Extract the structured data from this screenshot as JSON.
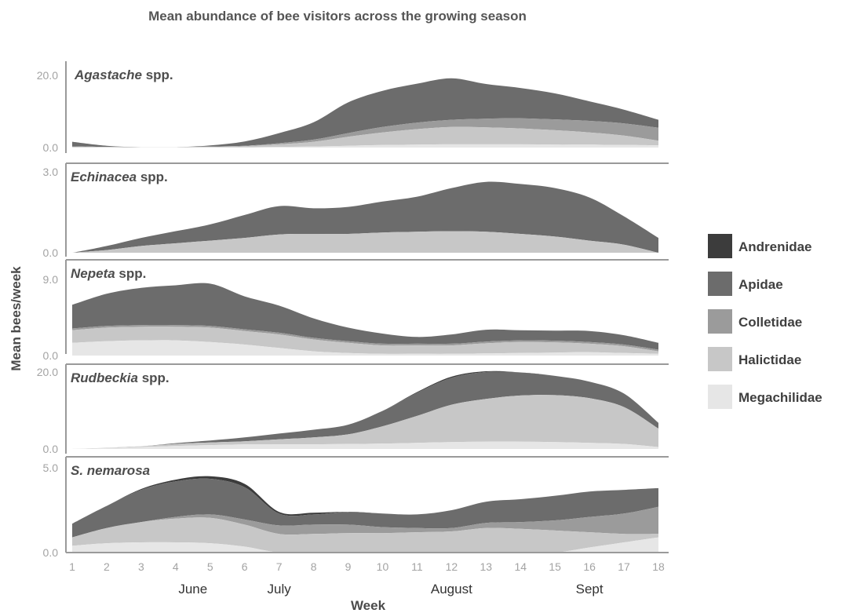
{
  "chart_data": {
    "type": "area",
    "title": "Mean abundance of bee visitors across the growing season",
    "xlabel": "Week",
    "ylabel": "Mean bees/week",
    "x": [
      1,
      2,
      3,
      4,
      5,
      6,
      7,
      8,
      9,
      10,
      11,
      12,
      13,
      14,
      15,
      16,
      17,
      18
    ],
    "x_ticks": [
      "1",
      "2",
      "3",
      "4",
      "5",
      "6",
      "7",
      "8",
      "9",
      "10",
      "11",
      "12",
      "13",
      "14",
      "15",
      "16",
      "17",
      "18"
    ],
    "months": [
      {
        "label": "June",
        "x": 4.5
      },
      {
        "label": "July",
        "x": 7.0
      },
      {
        "label": "August",
        "x": 12.0
      },
      {
        "label": "Sept",
        "x": 16.0
      }
    ],
    "legend": {
      "position": "right",
      "entries": [
        {
          "name": "Andrenidae",
          "color": "#3c3c3c"
        },
        {
          "name": "Apidae",
          "color": "#6c6c6c"
        },
        {
          "name": "Colletidae",
          "color": "#9b9b9b"
        },
        {
          "name": "Halictidae",
          "color": "#c7c7c7"
        },
        {
          "name": "Megachilidae",
          "color": "#e6e6e6"
        }
      ]
    },
    "stack_order": [
      "Megachilidae",
      "Halictidae",
      "Colletidae",
      "Apidae",
      "Andrenidae"
    ],
    "panels": [
      {
        "name_italic": "Agastache",
        "name_suffix": " spp.",
        "ylim": [
          0,
          20
        ],
        "y_ticks": [
          "0.0",
          "20.0"
        ],
        "series": {
          "Megachilidae": [
            0.1,
            0.1,
            0.1,
            0.1,
            0.1,
            0.1,
            0.2,
            0.3,
            0.5,
            0.7,
            0.8,
            0.9,
            0.9,
            0.9,
            0.8,
            0.8,
            0.7,
            0.6
          ],
          "Halictidae": [
            0.1,
            0.1,
            0,
            0,
            0.1,
            0.3,
            0.7,
            1.3,
            2.5,
            3.5,
            4.3,
            4.8,
            4.7,
            4.4,
            4.0,
            3.4,
            2.6,
            1.3
          ],
          "Colletidae": [
            0.1,
            0,
            0,
            0,
            0.1,
            0.1,
            0.3,
            0.6,
            1.0,
            1.5,
            1.8,
            2.0,
            2.4,
            2.8,
            3.0,
            3.2,
            3.4,
            3.6
          ],
          "Apidae": [
            1.3,
            0.3,
            0,
            0,
            0.3,
            1.2,
            2.8,
            4.8,
            8.5,
            10.0,
            10.8,
            11.5,
            9.6,
            8.4,
            7.2,
            5.4,
            3.8,
            2.2
          ],
          "Andrenidae": [
            0,
            0,
            0,
            0,
            0,
            0,
            0,
            0,
            0,
            0,
            0,
            0,
            0,
            0,
            0,
            0,
            0,
            0
          ]
        }
      },
      {
        "name_italic": "Echinacea",
        "name_suffix": " spp.",
        "ylim": [
          0,
          3
        ],
        "y_ticks": [
          "0.0",
          "3.0"
        ],
        "series": {
          "Megachilidae": [
            0,
            0,
            0,
            0,
            0,
            0,
            0,
            0,
            0,
            0,
            0,
            0,
            0,
            0,
            0,
            0,
            0,
            0
          ],
          "Halictidae": [
            0,
            0.1,
            0.25,
            0.35,
            0.45,
            0.55,
            0.68,
            0.7,
            0.7,
            0.75,
            0.78,
            0.8,
            0.78,
            0.7,
            0.6,
            0.45,
            0.3,
            0
          ],
          "Colletidae": [
            0,
            0,
            0,
            0,
            0,
            0,
            0,
            0,
            0,
            0,
            0,
            0,
            0,
            0,
            0,
            0,
            0,
            0
          ],
          "Apidae": [
            0,
            0.15,
            0.3,
            0.45,
            0.6,
            0.85,
            1.05,
            0.95,
            1.0,
            1.15,
            1.3,
            1.6,
            1.85,
            1.85,
            1.8,
            1.6,
            1.05,
            0.55
          ],
          "Andrenidae": [
            0,
            0,
            0,
            0,
            0,
            0,
            0,
            0,
            0,
            0,
            0,
            0,
            0,
            0,
            0,
            0,
            0,
            0
          ]
        }
      },
      {
        "name_italic": "Nepeta",
        "name_suffix": " spp.",
        "ylim": [
          0,
          9
        ],
        "y_ticks": [
          "0.0",
          "9.0"
        ],
        "series": {
          "Megachilidae": [
            1.5,
            1.7,
            1.8,
            1.8,
            1.6,
            1.3,
            0.9,
            0.5,
            0.3,
            0.2,
            0.2,
            0.2,
            0.25,
            0.3,
            0.35,
            0.4,
            0.3,
            0.2
          ],
          "Halictidae": [
            1.5,
            1.6,
            1.6,
            1.6,
            1.7,
            1.6,
            1.6,
            1.4,
            1.2,
            1.0,
            1.0,
            1.0,
            1.2,
            1.3,
            1.2,
            1.0,
            0.8,
            0.3
          ],
          "Colletidae": [
            0.2,
            0.2,
            0.2,
            0.2,
            0.2,
            0.2,
            0.2,
            0.2,
            0.2,
            0.2,
            0.2,
            0.2,
            0.2,
            0.2,
            0.2,
            0.2,
            0.2,
            0.2
          ],
          "Apidae": [
            2.8,
            3.8,
            4.4,
            4.7,
            5.0,
            3.9,
            3.2,
            2.3,
            1.6,
            1.2,
            0.8,
            1.1,
            1.4,
            1.2,
            1.2,
            1.3,
            1.1,
            0.8
          ],
          "Andrenidae": [
            0,
            0,
            0,
            0,
            0,
            0,
            0,
            0,
            0,
            0,
            0,
            0,
            0,
            0,
            0,
            0,
            0,
            0
          ]
        }
      },
      {
        "name_italic": "Rudbeckia",
        "name_suffix": " spp.",
        "ylim": [
          0,
          20
        ],
        "y_ticks": [
          "0.0",
          "20.0"
        ],
        "series": {
          "Megachilidae": [
            0,
            0.2,
            0.5,
            0.8,
            1.0,
            1.2,
            1.2,
            1.2,
            1.3,
            1.4,
            1.6,
            1.8,
            1.9,
            1.9,
            1.8,
            1.6,
            1.3,
            0.5
          ],
          "Halictidae": [
            0,
            0.1,
            0.2,
            0.5,
            0.7,
            0.8,
            1.3,
            1.8,
            2.5,
            4.5,
            7.0,
            9.7,
            11.1,
            12.0,
            12.2,
            11.6,
            9.6,
            4.8
          ],
          "Colletidae": [
            0,
            0,
            0,
            0,
            0,
            0,
            0,
            0,
            0,
            0,
            0,
            0,
            0,
            0,
            0,
            0,
            0,
            0
          ],
          "Apidae": [
            0,
            0,
            0,
            0.2,
            0.5,
            1.0,
            1.5,
            2.0,
            2.5,
            4.0,
            6.0,
            7.0,
            7.0,
            6.0,
            5.0,
            4.3,
            3.5,
            1.5
          ],
          "Andrenidae": [
            0,
            0,
            0,
            0,
            0,
            0,
            0,
            0,
            0,
            0,
            0.2,
            0.3,
            0.2,
            0,
            0,
            0,
            0,
            0
          ]
        }
      },
      {
        "name_italic": "S. nemarosa",
        "name_suffix": "",
        "ylim": [
          0,
          5
        ],
        "y_ticks": [
          "0.0",
          "5.0"
        ],
        "series": {
          "Megachilidae": [
            0.4,
            0.55,
            0.6,
            0.6,
            0.55,
            0.35,
            0,
            0,
            0,
            0,
            0,
            0,
            0,
            0,
            0,
            0.3,
            0.6,
            0.9
          ],
          "Halictidae": [
            0.5,
            0.9,
            1.2,
            1.4,
            1.5,
            1.3,
            1.1,
            1.1,
            1.15,
            1.15,
            1.2,
            1.25,
            1.45,
            1.4,
            1.3,
            0.9,
            0.5,
            0.2
          ],
          "Colletidae": [
            0,
            0,
            0,
            0.1,
            0.2,
            0.3,
            0.5,
            0.55,
            0.5,
            0.35,
            0.25,
            0.2,
            0.3,
            0.4,
            0.6,
            0.9,
            1.2,
            1.6
          ],
          "Apidae": [
            0.8,
            1.3,
            1.9,
            2.1,
            2.1,
            1.9,
            0.7,
            0.6,
            0.75,
            0.8,
            0.8,
            1.05,
            1.25,
            1.35,
            1.45,
            1.5,
            1.4,
            1.1
          ],
          "Andrenidae": [
            0,
            0,
            0.05,
            0.1,
            0.15,
            0.2,
            0.1,
            0.1,
            0,
            0,
            0,
            0,
            0,
            0,
            0,
            0,
            0,
            0
          ]
        }
      }
    ]
  }
}
